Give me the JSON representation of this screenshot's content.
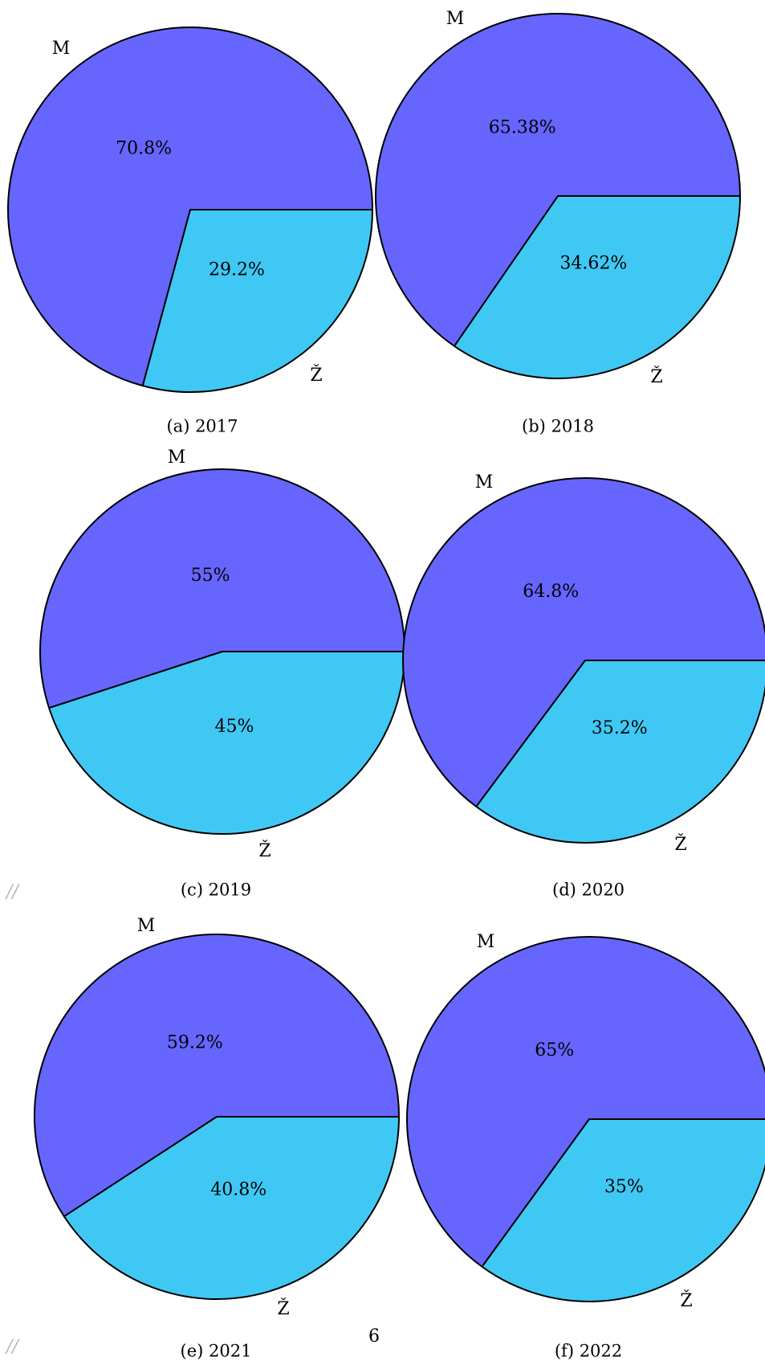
{
  "chart_data": [
    {
      "type": "pie",
      "caption": "(a) 2017",
      "colors": [
        "#6666ff",
        "#40c8f4"
      ],
      "slices": [
        {
          "label": "M",
          "value": 70.8,
          "value_label": "70.8%"
        },
        {
          "label": "Ž",
          "value": 29.2,
          "value_label": "29.2%"
        }
      ]
    },
    {
      "type": "pie",
      "caption": "(b) 2018",
      "colors": [
        "#6666ff",
        "#40c8f4"
      ],
      "slices": [
        {
          "label": "M",
          "value": 65.38,
          "value_label": "65.38%"
        },
        {
          "label": "Ž",
          "value": 34.62,
          "value_label": "34.62%"
        }
      ]
    },
    {
      "type": "pie",
      "caption": "(c) 2019",
      "colors": [
        "#6666ff",
        "#40c8f4"
      ],
      "slices": [
        {
          "label": "M",
          "value": 55,
          "value_label": "55%"
        },
        {
          "label": "Ž",
          "value": 45,
          "value_label": "45%"
        }
      ]
    },
    {
      "type": "pie",
      "caption": "(d) 2020",
      "colors": [
        "#6666ff",
        "#40c8f4"
      ],
      "slices": [
        {
          "label": "M",
          "value": 64.8,
          "value_label": "64.8%"
        },
        {
          "label": "Ž",
          "value": 35.2,
          "value_label": "35.2%"
        }
      ]
    },
    {
      "type": "pie",
      "caption": "(e) 2021",
      "colors": [
        "#6666ff",
        "#40c8f4"
      ],
      "slices": [
        {
          "label": "M",
          "value": 59.2,
          "value_label": "59.2%"
        },
        {
          "label": "Ž",
          "value": 40.8,
          "value_label": "40.8%"
        }
      ]
    },
    {
      "type": "pie",
      "caption": "(f) 2022",
      "colors": [
        "#6666ff",
        "#40c8f4"
      ],
      "slices": [
        {
          "label": "M",
          "value": 65,
          "value_label": "65%"
        },
        {
          "label": "Ž",
          "value": 35,
          "value_label": "35%"
        }
      ]
    }
  ],
  "page_number": "6",
  "stray_marks": [
    "//",
    "//"
  ]
}
